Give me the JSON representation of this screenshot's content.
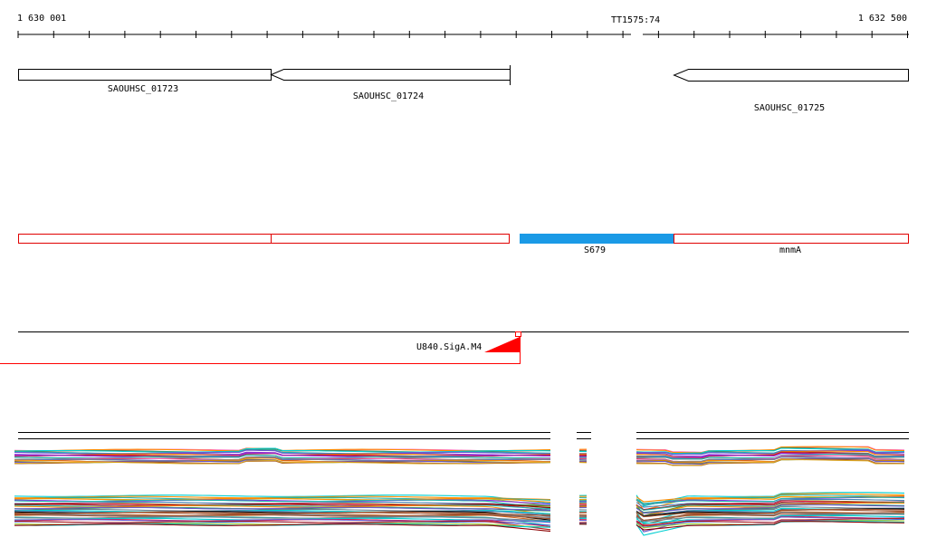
{
  "coordinate_axis": {
    "start_label": "1 630 001",
    "end_label": "1 632 500",
    "marker_label": "TT1575:74"
  },
  "genes": [
    {
      "name": "SAOUHSC_01723",
      "strand": "-"
    },
    {
      "name": "SAOUHSC_01724",
      "strand": "-"
    },
    {
      "name": "SAOUHSC_01725",
      "strand": "-"
    }
  ],
  "transcripts": [
    {
      "name": "",
      "type": "outline"
    },
    {
      "name": "",
      "type": "outline"
    },
    {
      "name": "S679",
      "type": "filled"
    },
    {
      "name": "mnmA",
      "type": "outline"
    }
  ],
  "promoter": {
    "label": "U840.SigA.M4"
  },
  "colors": {
    "axis": "#000000",
    "gene_outline": "#000000",
    "transcript_outline": "#e00000",
    "transcript_fill": "#1a9ae6",
    "promoter": "#ff0000"
  }
}
